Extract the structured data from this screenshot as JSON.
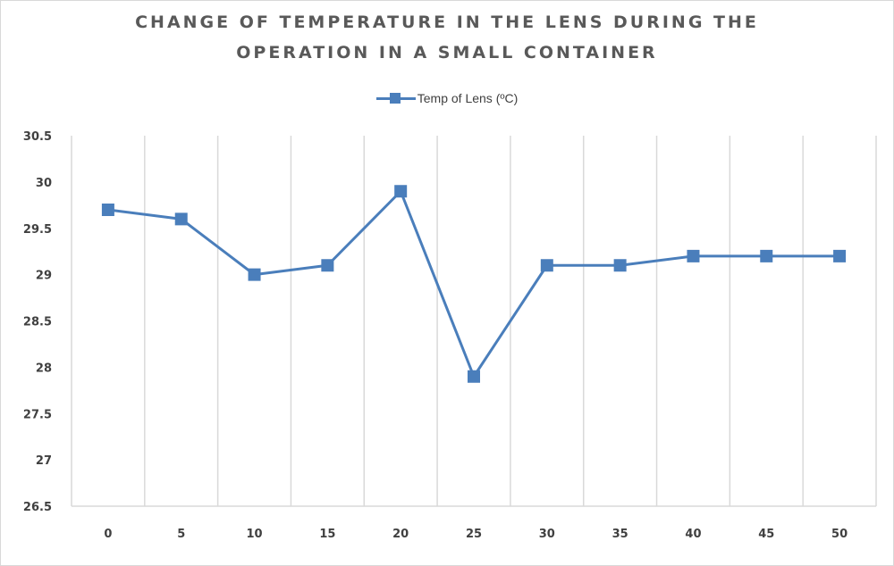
{
  "chart_data": {
    "type": "line",
    "title": "CHANGE OF TEMPERATURE IN THE LENS DURING THE OPERATION IN A SMALL CONTAINER",
    "title_lines": [
      "CHANGE OF TEMPERATURE IN THE LENS DURING THE",
      "OPERATION IN A SMALL CONTAINER"
    ],
    "xlabel": "",
    "ylabel": "",
    "categories": [
      "0",
      "5",
      "10",
      "15",
      "20",
      "25",
      "30",
      "35",
      "40",
      "45",
      "50"
    ],
    "series": [
      {
        "name": "Temp of Lens (ºC)",
        "color": "#4a7ebb",
        "marker": "square",
        "values": [
          29.7,
          29.6,
          29.0,
          29.1,
          29.9,
          27.9,
          29.1,
          29.1,
          29.2,
          29.2,
          29.2
        ]
      }
    ],
    "ylim": [
      26.5,
      30.5
    ],
    "yticks": [
      26.5,
      27,
      27.5,
      28,
      28.5,
      29,
      29.5,
      30,
      30.5
    ],
    "ytick_labels": [
      "26.5",
      "27",
      "27.5",
      "28",
      "28.5",
      "29",
      "29.5",
      "30",
      "30.5"
    ],
    "grid": "vertical",
    "legend_position": "top"
  }
}
